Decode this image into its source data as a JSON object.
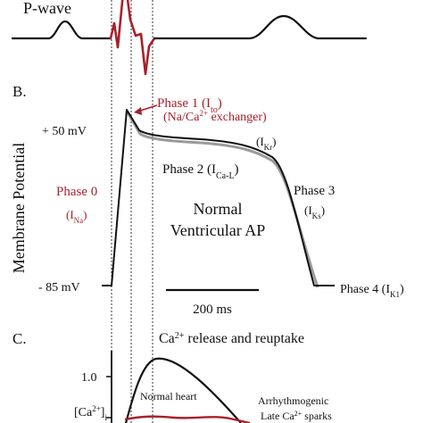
{
  "ecg": {
    "p_wave_label": "P-wave"
  },
  "action_potential": {
    "panel_label": "B.",
    "y_axis_label": "Membrane Potential",
    "top_voltage": "+ 50 mV",
    "bottom_voltage": "- 85 mV",
    "phase0": {
      "name": "Phase 0",
      "current": "Na"
    },
    "phase1": {
      "name": "Phase 1 (I",
      "current": "to",
      "close": ")",
      "exchanger": "(Na/Ca",
      "exchanger_sup": "2+",
      "exchanger_end": " exchanger)"
    },
    "phase2": {
      "name": "Phase 2 (I",
      "current": "Ca-L",
      "close": ")"
    },
    "kr": {
      "current": "Kr"
    },
    "phase3": {
      "name": "Phase 3",
      "current": "Ks"
    },
    "phase4": {
      "name": "Phase 4 (I",
      "current": "K1",
      "close": ")"
    },
    "center_title_line1": "Normal",
    "center_title_line2": "Ventricular AP",
    "scale_bar_label": "200 ms"
  },
  "calcium": {
    "panel_label": "C.",
    "title_prefix": "Ca",
    "title_sup": "2+",
    "title_suffix": " release and reuptake",
    "tick_value": "1.0",
    "y_label_main": "[Ca",
    "y_label_sup": "2+",
    "y_label_close": "]",
    "y_label_sub": "i",
    "normal_label": "Normal heart",
    "arrhythmia_line1": "Arrhythmogenic",
    "arrhythmia_line2_prefix": "Late Ca",
    "arrhythmia_line2_sup": "2+",
    "arrhythmia_line2_suffix": " sparks"
  },
  "colors": {
    "trace": "#111111",
    "accent_red": "#a8202a",
    "shadow_gray": "#9a9a9a"
  }
}
